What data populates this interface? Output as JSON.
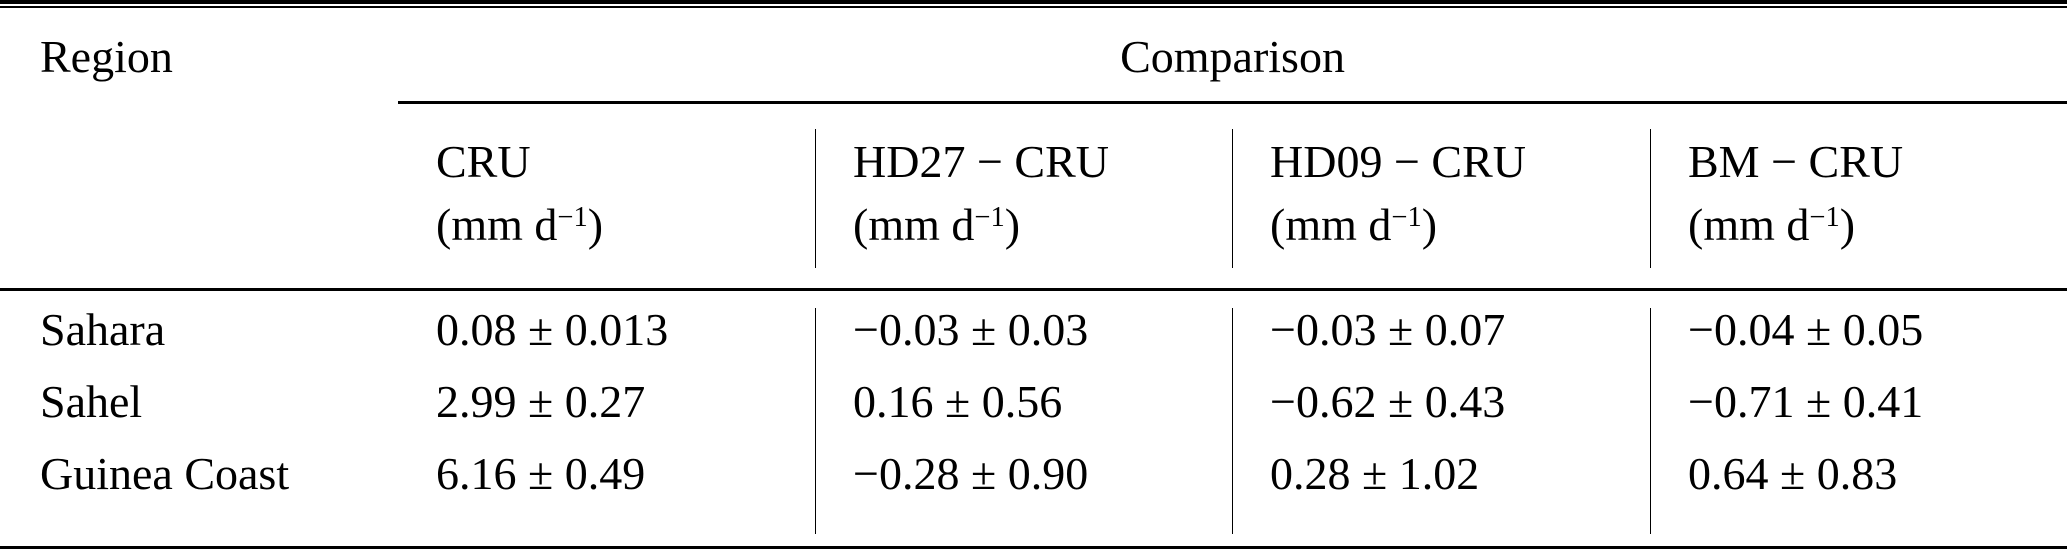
{
  "table": {
    "region_header": "Region",
    "comparison_header": "Comparison",
    "columns": [
      {
        "name": "CRU",
        "unit_prefix": "(mm d",
        "unit_exponent": "−1",
        "unit_suffix": ")"
      },
      {
        "name": "HD27 − CRU",
        "unit_prefix": "(mm d",
        "unit_exponent": "−1",
        "unit_suffix": ")"
      },
      {
        "name": "HD09 − CRU",
        "unit_prefix": "(mm d",
        "unit_exponent": "−1",
        "unit_suffix": ")"
      },
      {
        "name": "BM − CRU",
        "unit_prefix": "(mm d",
        "unit_exponent": "−1",
        "unit_suffix": ")"
      }
    ],
    "rows": [
      {
        "region": "Sahara",
        "values": [
          "0.08 ± 0.013",
          "−0.03 ± 0.03",
          "−0.03 ± 0.07",
          "−0.04 ± 0.05"
        ]
      },
      {
        "region": "Sahel",
        "values": [
          "2.99 ± 0.27",
          "0.16 ± 0.56",
          "−0.62 ± 0.43",
          "−0.71 ± 0.41"
        ]
      },
      {
        "region": "Guinea Coast",
        "values": [
          "6.16 ± 0.49",
          "−0.28 ± 0.90",
          "0.28 ± 1.02",
          "0.64 ± 0.83"
        ]
      }
    ]
  },
  "colors": {
    "text": "#000000",
    "rule": "#000000",
    "background": "#ffffff"
  }
}
